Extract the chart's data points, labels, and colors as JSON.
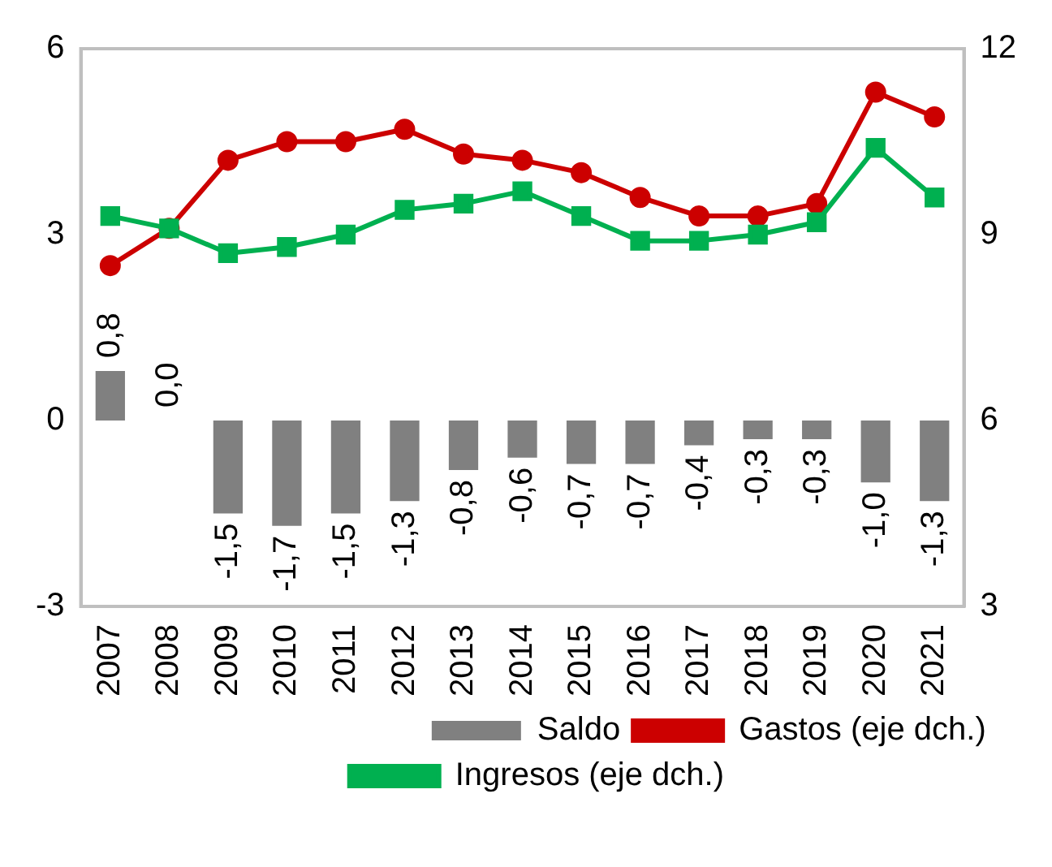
{
  "chart_data": {
    "type": "bar",
    "categories": [
      "2007",
      "2008",
      "2009",
      "2010",
      "2011",
      "2012",
      "2013",
      "2014",
      "2015",
      "2016",
      "2017",
      "2018",
      "2019",
      "2020",
      "2021"
    ],
    "series": [
      {
        "name": "Saldo",
        "color": "#808080",
        "values": [
          0.8,
          0.0,
          -1.5,
          -1.7,
          -1.5,
          -1.3,
          -0.8,
          -0.6,
          -0.7,
          -0.7,
          -0.4,
          -0.3,
          -0.3,
          -1.0,
          -1.3
        ],
        "value_labels": [
          "0,8",
          "0,0",
          "-1,5",
          "-1,7",
          "-1,5",
          "-1,3",
          "-0,8",
          "-0,6",
          "-0,7",
          "-0,7",
          "-0,4",
          "-0,3",
          "-0,3",
          "-1,0",
          "-1,3"
        ]
      },
      {
        "name": "Gastos (eje dch.)",
        "type": "line",
        "axis": "y2",
        "color": "#cc0000",
        "marker": "circle",
        "values": [
          8.5,
          9.1,
          10.2,
          10.5,
          10.5,
          10.7,
          10.3,
          10.2,
          10.0,
          9.6,
          9.3,
          9.3,
          9.5,
          11.3,
          10.9
        ]
      },
      {
        "name": "Ingresos (eje dch.)",
        "type": "line",
        "axis": "y2",
        "color": "#00b050",
        "marker": "square",
        "values": [
          9.3,
          9.1,
          8.7,
          8.8,
          9.0,
          9.4,
          9.5,
          9.7,
          9.3,
          8.9,
          8.9,
          9.0,
          9.2,
          10.4,
          9.6
        ]
      }
    ],
    "ylim": [
      -3,
      6
    ],
    "yticks": [
      -3,
      0,
      3,
      6
    ],
    "y2lim": [
      3,
      12
    ],
    "y2ticks": [
      3,
      6,
      9,
      12
    ],
    "grid": false,
    "legend": "bottom"
  }
}
